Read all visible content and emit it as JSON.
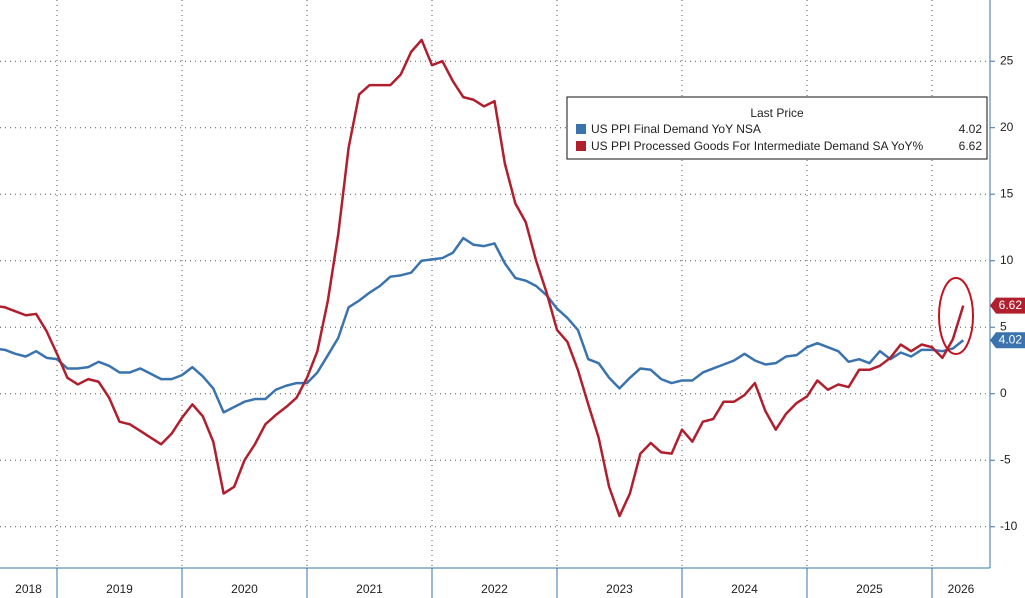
{
  "chart_data": {
    "type": "line",
    "legend_title": "Last Price",
    "x": [
      2018.5,
      2018.583,
      2018.667,
      2018.75,
      2018.833,
      2018.917,
      2019,
      2019.083,
      2019.167,
      2019.25,
      2019.333,
      2019.417,
      2019.5,
      2019.583,
      2019.667,
      2019.75,
      2019.833,
      2019.917,
      2020,
      2020.083,
      2020.167,
      2020.25,
      2020.333,
      2020.417,
      2020.5,
      2020.583,
      2020.667,
      2020.75,
      2020.833,
      2020.917,
      2021,
      2021.083,
      2021.167,
      2021.25,
      2021.333,
      2021.417,
      2021.5,
      2021.583,
      2021.667,
      2021.75,
      2021.833,
      2021.917,
      2022,
      2022.083,
      2022.167,
      2022.25,
      2022.333,
      2022.417,
      2022.5,
      2022.583,
      2022.667,
      2022.75,
      2022.833,
      2022.917,
      2023,
      2023.083,
      2023.167,
      2023.25,
      2023.333,
      2023.417,
      2023.5,
      2023.583,
      2023.667,
      2023.75,
      2023.833,
      2023.917,
      2024,
      2024.083,
      2024.167,
      2024.25,
      2024.333,
      2024.417,
      2024.5,
      2024.583,
      2024.667,
      2024.75,
      2024.833,
      2024.917,
      2025,
      2025.083,
      2025.167,
      2025.25,
      2025.333,
      2025.417,
      2025.5,
      2025.583,
      2025.667,
      2025.75,
      2025.833,
      2025.917,
      2026,
      2026.083,
      2026.167,
      2026.25
    ],
    "series": [
      {
        "name": "US PPI Final Demand YoY NSA",
        "color": "#3a73ad",
        "values": [
          3.4,
          3.3,
          3.0,
          2.8,
          3.2,
          2.7,
          2.6,
          1.9,
          1.9,
          2.0,
          2.4,
          2.1,
          1.6,
          1.6,
          1.9,
          1.5,
          1.1,
          1.1,
          1.4,
          2.0,
          1.3,
          0.4,
          -1.4,
          -1.0,
          -0.6,
          -0.4,
          -0.4,
          0.3,
          0.6,
          0.8,
          0.8,
          1.6,
          2.9,
          4.2,
          6.5,
          7.0,
          7.6,
          8.1,
          8.8,
          8.9,
          9.1,
          10.0,
          10.1,
          10.2,
          10.6,
          11.7,
          11.2,
          11.1,
          11.3,
          9.8,
          8.7,
          8.5,
          8.1,
          7.4,
          6.4,
          5.7,
          4.8,
          2.6,
          2.3,
          1.2,
          0.4,
          1.2,
          1.9,
          1.8,
          1.1,
          0.8,
          1.0,
          1.0,
          1.6,
          1.9,
          2.2,
          2.5,
          3.0,
          2.5,
          2.2,
          2.3,
          2.8,
          2.9,
          3.5,
          3.8,
          3.5,
          3.2,
          2.4,
          2.6,
          2.3,
          3.2,
          2.6,
          3.1,
          2.8,
          3.3,
          3.3,
          3.2,
          3.4,
          4.02
        ]
      },
      {
        "name": "US PPI Processed Goods For Intermediate Demand SA YoY%",
        "color": "#b01f2e",
        "values": [
          6.6,
          6.5,
          6.2,
          5.9,
          6.0,
          4.7,
          3.0,
          1.2,
          0.7,
          1.1,
          0.9,
          -0.3,
          -2.1,
          -2.3,
          -2.8,
          -3.3,
          -3.8,
          -3.0,
          -1.8,
          -0.8,
          -1.7,
          -3.6,
          -7.5,
          -7.0,
          -5.0,
          -3.8,
          -2.3,
          -1.6,
          -1.0,
          -0.3,
          1.2,
          3.2,
          7.0,
          12.0,
          18.5,
          22.5,
          23.2,
          23.2,
          23.2,
          24.0,
          25.7,
          26.6,
          24.7,
          25.0,
          23.5,
          22.3,
          22.1,
          21.6,
          22.0,
          17.3,
          14.3,
          12.9,
          10.0,
          7.6,
          4.8,
          3.9,
          1.8,
          -0.8,
          -3.3,
          -7.0,
          -9.2,
          -7.5,
          -4.5,
          -3.7,
          -4.4,
          -4.5,
          -2.7,
          -3.6,
          -2.1,
          -1.9,
          -0.6,
          -0.6,
          -0.1,
          0.8,
          -1.3,
          -2.7,
          -1.5,
          -0.7,
          -0.2,
          1.0,
          0.3,
          0.7,
          0.5,
          1.8,
          1.8,
          2.1,
          2.7,
          3.7,
          3.2,
          3.7,
          3.5,
          2.7,
          4.1,
          6.62
        ]
      }
    ],
    "xlim": [
      2018.544,
      2026.464
    ],
    "xticks": [
      2018,
      2019,
      2020,
      2021,
      2022,
      2023,
      2024,
      2025,
      2026
    ],
    "ylim": [
      -13.1,
      29.6
    ],
    "yticks": [
      -10,
      -5,
      0,
      5,
      10,
      15,
      20,
      25
    ],
    "grid": true,
    "legend_position": "upper right"
  }
}
